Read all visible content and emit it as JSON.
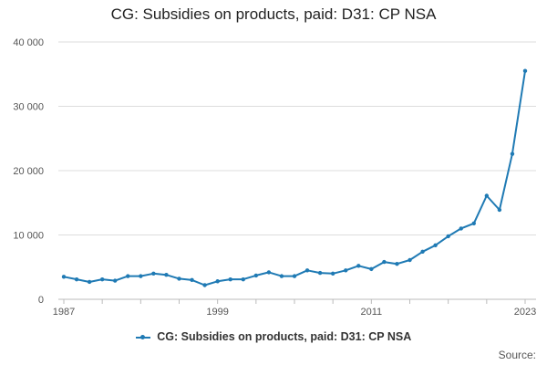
{
  "chart_data": {
    "type": "line",
    "title": "CG: Subsidies on products, paid: D31: CP NSA",
    "xlabel": "",
    "ylabel": "",
    "x": [
      1987,
      1988,
      1989,
      1990,
      1991,
      1992,
      1993,
      1994,
      1995,
      1996,
      1997,
      1998,
      1999,
      2000,
      2001,
      2002,
      2003,
      2004,
      2005,
      2006,
      2007,
      2008,
      2009,
      2010,
      2011,
      2012,
      2013,
      2014,
      2015,
      2016,
      2017,
      2018,
      2019,
      2020,
      2021,
      2022,
      2023
    ],
    "series": [
      {
        "name": "CG: Subsidies on products, paid: D31: CP NSA",
        "color": "#1f7ab4",
        "values": [
          3500,
          3100,
          2700,
          3100,
          2900,
          3600,
          3600,
          4000,
          3800,
          3200,
          3000,
          2200,
          2800,
          3100,
          3100,
          3700,
          4200,
          3600,
          3600,
          4500,
          4100,
          4000,
          4500,
          5200,
          4700,
          5800,
          5500,
          6100,
          7400,
          8400,
          9800,
          11000,
          11800,
          16100,
          13900,
          22600,
          35500
        ]
      }
    ],
    "xticks": [
      "1987",
      "1999",
      "2011",
      "2023"
    ],
    "xtick_values": [
      1987,
      1999,
      2011,
      2023
    ],
    "yticks": [
      "0",
      "10 000",
      "20 000",
      "30 000",
      "40 000"
    ],
    "ytick_values": [
      0,
      10000,
      20000,
      30000,
      40000
    ],
    "xlim": [
      1987,
      2023
    ],
    "ylim": [
      0,
      40000
    ],
    "grid": "horizontal",
    "legend_position": "bottom"
  },
  "legend": {
    "label": "CG: Subsidies on products, paid: D31: CP NSA"
  },
  "footer": {
    "source_label": "Source:"
  }
}
